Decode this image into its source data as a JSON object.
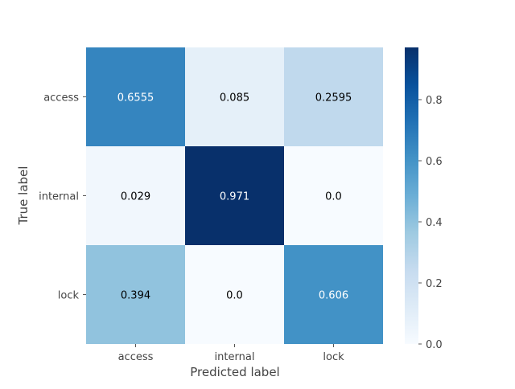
{
  "chart_data": {
    "type": "heatmap",
    "x_categories": [
      "access",
      "internal",
      "lock"
    ],
    "y_categories": [
      "access",
      "internal",
      "lock"
    ],
    "values": [
      [
        0.6555,
        0.085,
        0.2595
      ],
      [
        0.029,
        0.971,
        0.0
      ],
      [
        0.394,
        0.0,
        0.606
      ]
    ],
    "cell_labels": [
      [
        "0.6555",
        "0.085",
        "0.2595"
      ],
      [
        "0.029",
        "0.971",
        "0.0"
      ],
      [
        "0.394",
        "0.0",
        "0.606"
      ]
    ],
    "xlabel": "Predicted label",
    "ylabel": "True label",
    "colormap": "Blues",
    "color_range": [
      0.0,
      0.971
    ],
    "colorbar_ticks": [
      0.0,
      0.2,
      0.4,
      0.6,
      0.8
    ],
    "colorbar_tick_labels": [
      "0.0",
      "0.2",
      "0.4",
      "0.6",
      "0.8"
    ],
    "grid": false,
    "legend": "colorbar-right"
  }
}
